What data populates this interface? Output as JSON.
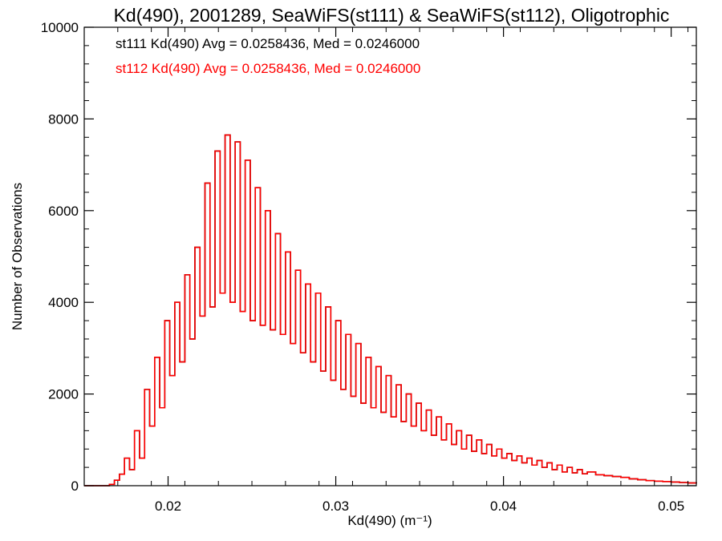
{
  "chart_data": {
    "type": "line",
    "title": "Kd(490), 2001289, SeaWiFS(st111) & SeaWiFS(st112), Oligotrophic",
    "xlabel": "Kd(490) (m⁻¹)",
    "ylabel": "Number of Observations",
    "xlim": [
      0.015,
      0.0515
    ],
    "ylim": [
      0,
      10000
    ],
    "x_ticks": [
      0.02,
      0.03,
      0.04,
      0.05
    ],
    "x_tick_labels": [
      "0.02",
      "0.03",
      "0.04",
      "0.05"
    ],
    "y_ticks": [
      0,
      2000,
      4000,
      6000,
      8000,
      10000
    ],
    "y_tick_labels": [
      "0",
      "2000",
      "4000",
      "6000",
      "8000",
      "10000"
    ],
    "grid": false,
    "legend_placement": "top-left",
    "series": [
      {
        "name": "st111 Kd(490) Avg = 0.0258436, Med = 0.0246000",
        "color": "#000000",
        "x": [
          0.015,
          0.0155,
          0.016,
          0.0165,
          0.0168,
          0.0171,
          0.0174,
          0.0177,
          0.018,
          0.0183,
          0.0186,
          0.0189,
          0.0192,
          0.0195,
          0.0198,
          0.0201,
          0.0204,
          0.0207,
          0.021,
          0.0213,
          0.0216,
          0.0219,
          0.0222,
          0.0225,
          0.0228,
          0.0231,
          0.0234,
          0.0237,
          0.024,
          0.0243,
          0.0246,
          0.0249,
          0.0252,
          0.0255,
          0.0258,
          0.0261,
          0.0264,
          0.0267,
          0.027,
          0.0273,
          0.0276,
          0.0279,
          0.0282,
          0.0285,
          0.0288,
          0.0291,
          0.0294,
          0.0297,
          0.03,
          0.0303,
          0.0306,
          0.0309,
          0.0312,
          0.0315,
          0.0318,
          0.0321,
          0.0324,
          0.0327,
          0.033,
          0.0333,
          0.0336,
          0.0339,
          0.0342,
          0.0345,
          0.0348,
          0.0351,
          0.0354,
          0.0357,
          0.036,
          0.0363,
          0.0366,
          0.0369,
          0.0372,
          0.0375,
          0.0378,
          0.0381,
          0.0384,
          0.0387,
          0.039,
          0.0393,
          0.0396,
          0.0399,
          0.0402,
          0.0405,
          0.0408,
          0.0411,
          0.0414,
          0.0417,
          0.042,
          0.0423,
          0.0426,
          0.0429,
          0.0432,
          0.0435,
          0.0438,
          0.0441,
          0.0444,
          0.0447,
          0.045,
          0.0455,
          0.046,
          0.0465,
          0.047,
          0.0475,
          0.048,
          0.0485,
          0.049,
          0.0495,
          0.05,
          0.0505,
          0.051,
          0.0515
        ],
        "y": [
          0,
          0,
          0,
          30,
          120,
          250,
          600,
          350,
          1200,
          600,
          2100,
          1300,
          2800,
          1700,
          3600,
          2400,
          4000,
          2700,
          4600,
          3200,
          5200,
          3700,
          6600,
          3900,
          7300,
          4200,
          7650,
          4000,
          7500,
          3800,
          7100,
          3600,
          6500,
          3500,
          6000,
          3400,
          5500,
          3300,
          5100,
          3100,
          4700,
          2900,
          4400,
          2700,
          4200,
          2500,
          3900,
          2300,
          3600,
          2100,
          3300,
          1950,
          3100,
          1800,
          2800,
          1700,
          2600,
          1600,
          2400,
          1500,
          2200,
          1400,
          2000,
          1300,
          1800,
          1200,
          1650,
          1100,
          1500,
          1000,
          1350,
          900,
          1200,
          800,
          1100,
          750,
          1000,
          700,
          900,
          650,
          800,
          600,
          700,
          550,
          650,
          500,
          600,
          450,
          550,
          400,
          500,
          350,
          450,
          300,
          400,
          280,
          350,
          260,
          300,
          240,
          220,
          200,
          180,
          150,
          130,
          110,
          100,
          90,
          80,
          70,
          60,
          50
        ]
      },
      {
        "name": "st112 Kd(490) Avg = 0.0258436, Med = 0.0246000",
        "color": "#ff0000",
        "x": [
          0.015,
          0.0155,
          0.016,
          0.0165,
          0.0168,
          0.0171,
          0.0174,
          0.0177,
          0.018,
          0.0183,
          0.0186,
          0.0189,
          0.0192,
          0.0195,
          0.0198,
          0.0201,
          0.0204,
          0.0207,
          0.021,
          0.0213,
          0.0216,
          0.0219,
          0.0222,
          0.0225,
          0.0228,
          0.0231,
          0.0234,
          0.0237,
          0.024,
          0.0243,
          0.0246,
          0.0249,
          0.0252,
          0.0255,
          0.0258,
          0.0261,
          0.0264,
          0.0267,
          0.027,
          0.0273,
          0.0276,
          0.0279,
          0.0282,
          0.0285,
          0.0288,
          0.0291,
          0.0294,
          0.0297,
          0.03,
          0.0303,
          0.0306,
          0.0309,
          0.0312,
          0.0315,
          0.0318,
          0.0321,
          0.0324,
          0.0327,
          0.033,
          0.0333,
          0.0336,
          0.0339,
          0.0342,
          0.0345,
          0.0348,
          0.0351,
          0.0354,
          0.0357,
          0.036,
          0.0363,
          0.0366,
          0.0369,
          0.0372,
          0.0375,
          0.0378,
          0.0381,
          0.0384,
          0.0387,
          0.039,
          0.0393,
          0.0396,
          0.0399,
          0.0402,
          0.0405,
          0.0408,
          0.0411,
          0.0414,
          0.0417,
          0.042,
          0.0423,
          0.0426,
          0.0429,
          0.0432,
          0.0435,
          0.0438,
          0.0441,
          0.0444,
          0.0447,
          0.045,
          0.0455,
          0.046,
          0.0465,
          0.047,
          0.0475,
          0.048,
          0.0485,
          0.049,
          0.0495,
          0.05,
          0.0505,
          0.051,
          0.0515
        ],
        "y": [
          0,
          0,
          0,
          30,
          120,
          250,
          600,
          350,
          1200,
          600,
          2100,
          1300,
          2800,
          1700,
          3600,
          2400,
          4000,
          2700,
          4600,
          3200,
          5200,
          3700,
          6600,
          3900,
          7300,
          4200,
          7650,
          4000,
          7500,
          3800,
          7100,
          3600,
          6500,
          3500,
          6000,
          3400,
          5500,
          3300,
          5100,
          3100,
          4700,
          2900,
          4400,
          2700,
          4200,
          2500,
          3900,
          2300,
          3600,
          2100,
          3300,
          1950,
          3100,
          1800,
          2800,
          1700,
          2600,
          1600,
          2400,
          1500,
          2200,
          1400,
          2000,
          1300,
          1800,
          1200,
          1650,
          1100,
          1500,
          1000,
          1350,
          900,
          1200,
          800,
          1100,
          750,
          1000,
          700,
          900,
          650,
          800,
          600,
          700,
          550,
          650,
          500,
          600,
          450,
          550,
          400,
          500,
          350,
          450,
          300,
          400,
          280,
          350,
          260,
          300,
          240,
          220,
          200,
          180,
          150,
          130,
          110,
          100,
          90,
          80,
          70,
          60,
          50
        ]
      }
    ]
  }
}
